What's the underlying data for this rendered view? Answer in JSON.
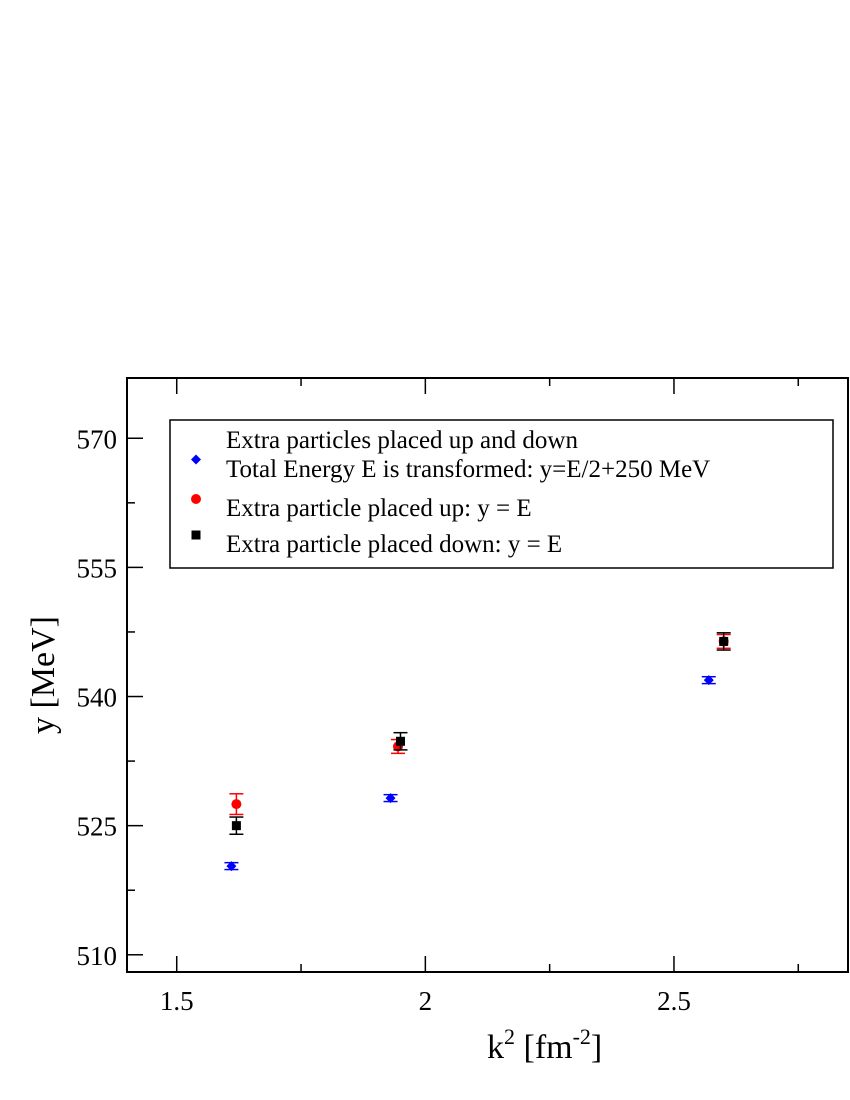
{
  "chart_data": {
    "type": "scatter",
    "title": "",
    "xlabel": "k",
    "xlabel_sup": "2",
    "xlabel_unit_open": " [fm",
    "xlabel_unit_sup": "-2",
    "xlabel_unit_close": "]",
    "ylabel": "y [MeV]",
    "xlim": [
      1.4,
      2.85
    ],
    "ylim": [
      508,
      577
    ],
    "x_ticks": [
      1.5,
      2,
      2.5
    ],
    "x_tick_labels": [
      "1.5",
      "2",
      "2.5"
    ],
    "y_ticks": [
      510,
      525,
      540,
      555,
      570
    ],
    "y_tick_labels": [
      "510",
      "525",
      "540",
      "555",
      "570"
    ],
    "grid": false,
    "legend_position": "top-left",
    "series": [
      {
        "label_lines": [
          "Extra particles placed up and down",
          "Total Energy E is transformed: y=E/2+250 MeV"
        ],
        "marker": "diamond",
        "color": "#0000ff",
        "points": [
          {
            "x": 1.61,
            "y": 520.3,
            "err": 0.4
          },
          {
            "x": 1.93,
            "y": 528.2,
            "err": 0.4
          },
          {
            "x": 2.57,
            "y": 541.9,
            "err": 0.4
          }
        ]
      },
      {
        "label_lines": [
          "Extra particle placed up: y = E"
        ],
        "marker": "circle",
        "color": "#ff0000",
        "points": [
          {
            "x": 1.62,
            "y": 527.5,
            "err": 1.2
          },
          {
            "x": 1.945,
            "y": 534.2,
            "err": 0.8
          },
          {
            "x": 2.6,
            "y": 546.4,
            "err": 0.8
          }
        ]
      },
      {
        "label_lines": [
          "Extra particle placed down: y = E"
        ],
        "marker": "square",
        "color": "#000000",
        "points": [
          {
            "x": 1.62,
            "y": 525.0,
            "err": 1.0
          },
          {
            "x": 1.95,
            "y": 534.8,
            "err": 1.0
          },
          {
            "x": 2.6,
            "y": 546.4,
            "err": 1.0
          }
        ]
      }
    ]
  }
}
